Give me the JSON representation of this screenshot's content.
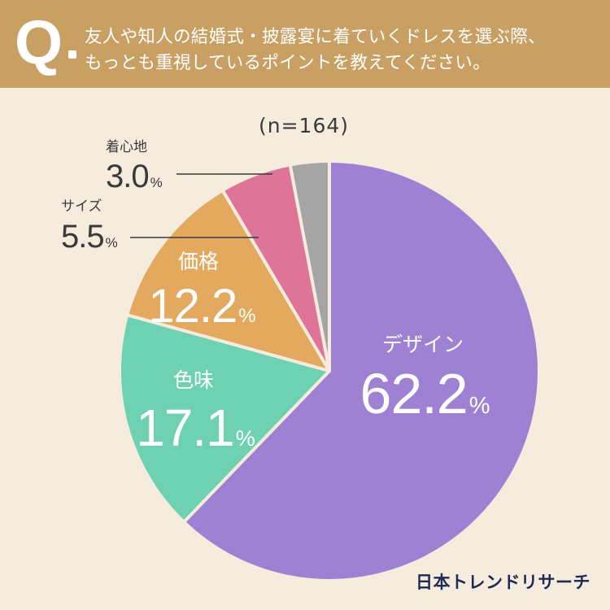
{
  "question": {
    "mark": "Q",
    "line1": "友人や知人の結婚式・披露宴に着ていくドレスを選ぶ際、",
    "line2": "もっとも重視しているポイントを教えてください。"
  },
  "sample_size": "(n=164)",
  "brand": "日本トレンドリサーチ",
  "colors": {
    "header": "#c9a064",
    "background": "#f5ecdd",
    "brand": "#1e2a55"
  },
  "chart_data": {
    "type": "pie",
    "start": "12 o'clock",
    "direction": "clockwise",
    "slices": [
      {
        "label": "デザイン",
        "value": 62.2,
        "display": "62.2",
        "unit": "%",
        "color": "#9f81d4"
      },
      {
        "label": "色味",
        "value": 17.1,
        "display": "17.1",
        "unit": "%",
        "color": "#6ed1b2"
      },
      {
        "label": "価格",
        "value": 12.2,
        "display": "12.2",
        "unit": "%",
        "color": "#e3a95e"
      },
      {
        "label": "サイズ",
        "value": 5.5,
        "display": "5.5",
        "unit": "%",
        "color": "#de7598"
      },
      {
        "label": "着心地",
        "value": 3.0,
        "display": "3.0",
        "unit": "%",
        "color": "#a5a5a5"
      }
    ]
  }
}
